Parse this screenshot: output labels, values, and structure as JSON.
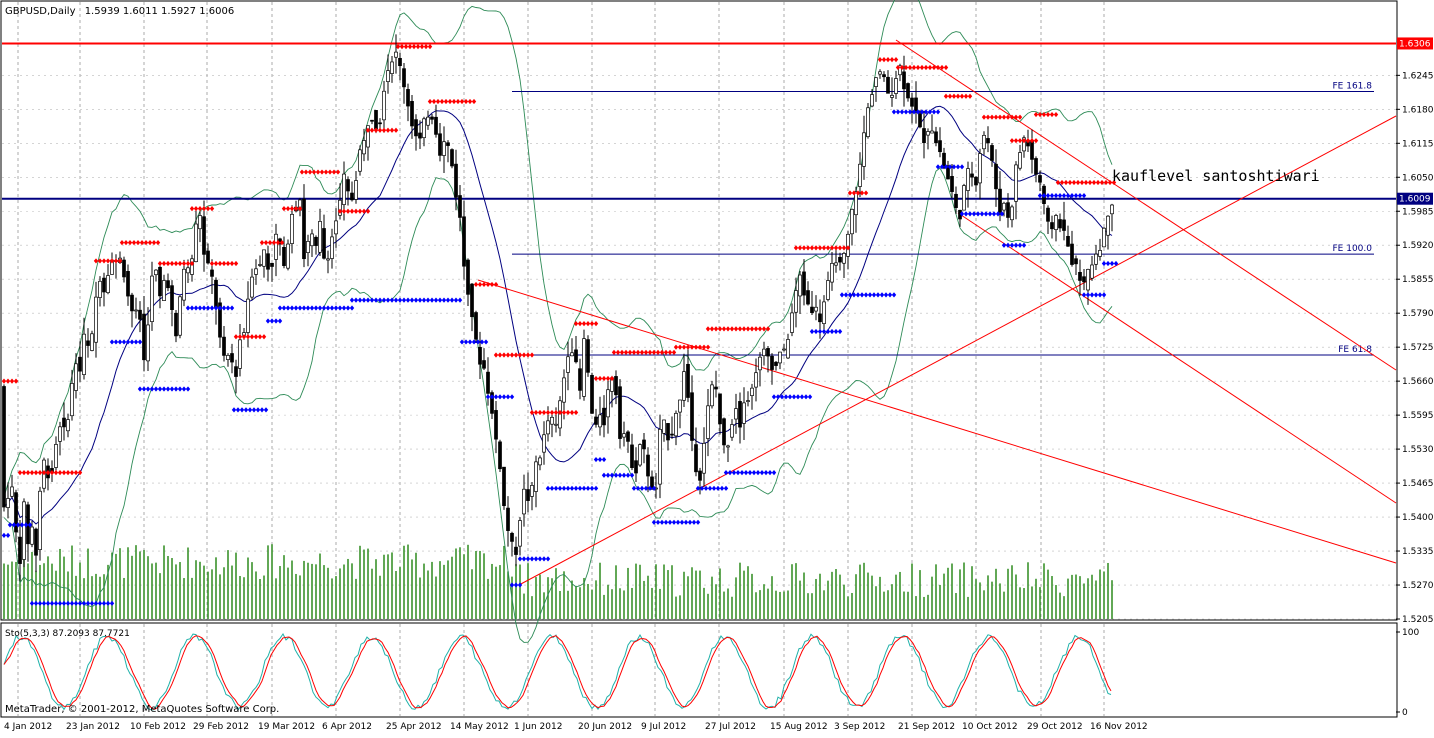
{
  "chart_data": [
    {
      "type": "candlestick",
      "symbol": "GBPUSD,Daily",
      "ohlc_label": "1.5939 1.6011 1.5927 1.6006",
      "watermark": "MetaTrader, © 2001-2012, MetaQuotes Software Corp.",
      "annotation": "kauflevel santoshtiwari",
      "ylim": [
        1.5205,
        1.637
      ],
      "y_ticks": [
        "1.6245",
        "1.6180",
        "1.6115",
        "1.6050",
        "1.5985",
        "1.5920",
        "1.5855",
        "1.5790",
        "1.5725",
        "1.5660",
        "1.5595",
        "1.5530",
        "1.5465",
        "1.5400",
        "1.5335",
        "1.5270",
        "1.5205"
      ],
      "x_ticks": [
        "4 Jan 2012",
        "23 Jan 2012",
        "10 Feb 2012",
        "29 Feb 2012",
        "19 Mar 2012",
        "6 Apr 2012",
        "25 Apr 2012",
        "14 May 2012",
        "1 Jun 2012",
        "20 Jun 2012",
        "9 Jul 2012",
        "27 Jul 2012",
        "15 Aug 2012",
        "3 Sep 2012",
        "21 Sep 2012",
        "10 Oct 2012",
        "29 Oct 2012",
        "16 Nov 2012"
      ],
      "horizontal_levels": [
        {
          "label": "1.6306",
          "value": 1.6306,
          "color": "#ff0000"
        },
        {
          "label": "1.6009",
          "value": 1.6009,
          "color": "#000080"
        }
      ],
      "fibonacci_levels": [
        {
          "label": "FE 161.8",
          "value": 1.6214
        },
        {
          "label": "FE 100.0",
          "value": 1.5903
        },
        {
          "label": "FE 61.8",
          "value": 1.571
        }
      ],
      "price_path": [
        [
          0,
          1.565
        ],
        [
          5,
          1.536
        ],
        [
          10,
          1.55
        ],
        [
          15,
          1.538
        ],
        [
          20,
          1.532
        ],
        [
          24,
          1.542
        ],
        [
          27,
          1.538
        ],
        [
          30,
          1.53
        ],
        [
          33,
          1.542
        ],
        [
          37,
          1.53
        ],
        [
          40,
          1.545
        ],
        [
          45,
          1.552
        ],
        [
          50,
          1.546
        ],
        [
          55,
          1.553
        ],
        [
          60,
          1.558
        ],
        [
          65,
          1.556
        ],
        [
          70,
          1.562
        ],
        [
          75,
          1.57
        ],
        [
          80,
          1.568
        ],
        [
          85,
          1.576
        ],
        [
          90,
          1.57
        ],
        [
          95,
          1.581
        ],
        [
          100,
          1.586
        ],
        [
          105,
          1.583
        ],
        [
          110,
          1.59
        ],
        [
          115,
          1.588
        ],
        [
          120,
          1.59
        ],
        [
          125,
          1.586
        ],
        [
          130,
          1.58
        ],
        [
          135,
          1.579
        ],
        [
          140,
          1.578
        ],
        [
          145,
          1.568
        ],
        [
          150,
          1.584
        ],
        [
          155,
          1.588
        ],
        [
          160,
          1.582
        ],
        [
          165,
          1.586
        ],
        [
          170,
          1.584
        ],
        [
          175,
          1.572
        ],
        [
          180,
          1.582
        ],
        [
          185,
          1.589
        ],
        [
          190,
          1.586
        ],
        [
          195,
          1.595
        ],
        [
          200,
          1.598
        ],
        [
          205,
          1.588
        ],
        [
          210,
          1.588
        ],
        [
          215,
          1.582
        ],
        [
          220,
          1.574
        ],
        [
          225,
          1.569
        ],
        [
          230,
          1.572
        ],
        [
          235,
          1.566
        ],
        [
          240,
          1.574
        ],
        [
          245,
          1.576
        ],
        [
          250,
          1.586
        ],
        [
          255,
          1.588
        ],
        [
          260,
          1.588
        ],
        [
          265,
          1.592
        ],
        [
          270,
          1.585
        ],
        [
          275,
          1.594
        ],
        [
          280,
          1.592
        ],
        [
          285,
          1.586
        ],
        [
          290,
          1.598
        ],
        [
          295,
          1.599
        ],
        [
          300,
          1.601
        ],
        [
          305,
          1.587
        ],
        [
          310,
          1.596
        ],
        [
          315,
          1.59
        ],
        [
          320,
          1.596
        ],
        [
          325,
          1.588
        ],
        [
          330,
          1.592
        ],
        [
          335,
          1.596
        ],
        [
          340,
          1.6
        ],
        [
          345,
          1.606
        ],
        [
          350,
          1.599
        ],
        [
          355,
          1.604
        ],
        [
          360,
          1.61
        ],
        [
          365,
          1.612
        ],
        [
          370,
          1.618
        ],
        [
          375,
          1.615
        ],
        [
          380,
          1.616
        ],
        [
          385,
          1.624
        ],
        [
          390,
          1.627
        ],
        [
          395,
          1.629
        ],
        [
          400,
          1.626
        ],
        [
          405,
          1.622
        ],
        [
          410,
          1.617
        ],
        [
          415,
          1.613
        ],
        [
          420,
          1.612
        ],
        [
          425,
          1.616
        ],
        [
          430,
          1.618
        ],
        [
          435,
          1.615
        ],
        [
          440,
          1.61
        ],
        [
          445,
          1.612
        ],
        [
          450,
          1.61
        ],
        [
          455,
          1.603
        ],
        [
          460,
          1.597
        ],
        [
          465,
          1.586
        ],
        [
          470,
          1.582
        ],
        [
          475,
          1.574
        ],
        [
          480,
          1.57
        ],
        [
          485,
          1.568
        ],
        [
          490,
          1.562
        ],
        [
          495,
          1.556
        ],
        [
          500,
          1.55
        ],
        [
          505,
          1.54
        ],
        [
          510,
          1.536
        ],
        [
          515,
          1.532
        ],
        [
          520,
          1.54
        ],
        [
          525,
          1.546
        ],
        [
          530,
          1.542
        ],
        [
          535,
          1.55
        ],
        [
          540,
          1.552
        ],
        [
          545,
          1.556
        ],
        [
          550,
          1.56
        ],
        [
          555,
          1.556
        ],
        [
          560,
          1.562
        ],
        [
          565,
          1.568
        ],
        [
          570,
          1.574
        ],
        [
          575,
          1.57
        ],
        [
          580,
          1.564
        ],
        [
          585,
          1.576
        ],
        [
          590,
          1.562
        ],
        [
          595,
          1.556
        ],
        [
          600,
          1.56
        ],
        [
          605,
          1.558
        ],
        [
          610,
          1.568
        ],
        [
          615,
          1.566
        ],
        [
          620,
          1.556
        ],
        [
          625,
          1.556
        ],
        [
          630,
          1.552
        ],
        [
          635,
          1.548
        ],
        [
          640,
          1.554
        ],
        [
          645,
          1.552
        ],
        [
          650,
          1.546
        ],
        [
          655,
          1.543
        ],
        [
          660,
          1.556
        ],
        [
          665,
          1.558
        ],
        [
          670,
          1.554
        ],
        [
          675,
          1.56
        ],
        [
          680,
          1.562
        ],
        [
          685,
          1.57
        ],
        [
          690,
          1.558
        ],
        [
          695,
          1.55
        ],
        [
          700,
          1.548
        ],
        [
          705,
          1.556
        ],
        [
          710,
          1.564
        ],
        [
          715,
          1.566
        ],
        [
          720,
          1.558
        ],
        [
          725,
          1.552
        ],
        [
          730,
          1.556
        ],
        [
          735,
          1.562
        ],
        [
          740,
          1.558
        ],
        [
          745,
          1.564
        ],
        [
          750,
          1.562
        ],
        [
          755,
          1.568
        ],
        [
          760,
          1.57
        ],
        [
          765,
          1.572
        ],
        [
          770,
          1.57
        ],
        [
          775,
          1.568
        ],
        [
          780,
          1.572
        ],
        [
          785,
          1.571
        ],
        [
          790,
          1.577
        ],
        [
          795,
          1.582
        ],
        [
          800,
          1.586
        ],
        [
          805,
          1.582
        ],
        [
          810,
          1.58
        ],
        [
          815,
          1.58
        ],
        [
          820,
          1.578
        ],
        [
          825,
          1.582
        ],
        [
          830,
          1.586
        ],
        [
          835,
          1.59
        ],
        [
          840,
          1.588
        ],
        [
          845,
          1.59
        ],
        [
          850,
          1.596
        ],
        [
          855,
          1.602
        ],
        [
          860,
          1.607
        ],
        [
          865,
          1.615
        ],
        [
          870,
          1.62
        ],
        [
          875,
          1.624
        ],
        [
          880,
          1.625
        ],
        [
          885,
          1.623
        ],
        [
          890,
          1.62
        ],
        [
          895,
          1.624
        ],
        [
          900,
          1.626
        ],
        [
          905,
          1.622
        ],
        [
          910,
          1.62
        ],
        [
          915,
          1.618
        ],
        [
          920,
          1.614
        ],
        [
          925,
          1.612
        ],
        [
          930,
          1.616
        ],
        [
          935,
          1.612
        ],
        [
          940,
          1.61
        ],
        [
          945,
          1.606
        ],
        [
          950,
          1.604
        ],
        [
          955,
          1.599
        ],
        [
          960,
          1.598
        ],
        [
          965,
          1.604
        ],
        [
          970,
          1.607
        ],
        [
          975,
          1.603
        ],
        [
          980,
          1.61
        ],
        [
          985,
          1.614
        ],
        [
          990,
          1.61
        ],
        [
          995,
          1.604
        ],
        [
          1000,
          1.599
        ],
        [
          1005,
          1.6
        ],
        [
          1010,
          1.596
        ],
        [
          1015,
          1.606
        ],
        [
          1020,
          1.61
        ],
        [
          1025,
          1.613
        ],
        [
          1030,
          1.61
        ],
        [
          1035,
          1.606
        ],
        [
          1040,
          1.604
        ],
        [
          1045,
          1.598
        ],
        [
          1050,
          1.594
        ],
        [
          1055,
          1.598
        ],
        [
          1060,
          1.596
        ],
        [
          1065,
          1.594
        ],
        [
          1070,
          1.59
        ],
        [
          1075,
          1.588
        ],
        [
          1080,
          1.586
        ],
        [
          1085,
          1.584
        ],
        [
          1090,
          1.588
        ],
        [
          1095,
          1.59
        ],
        [
          1100,
          1.592
        ],
        [
          1105,
          1.595
        ],
        [
          1110,
          1.6006
        ]
      ]
    },
    {
      "type": "line",
      "title": "Sto(5,3,3) 87.2093 87.7721",
      "ylim": [
        0,
        100
      ],
      "y_ticks": [
        "100",
        "0"
      ]
    }
  ],
  "colors": {
    "background": "#ffffff",
    "candle": "#000000",
    "volume": "#2e8b1e",
    "bands": "#2e8b57",
    "ma": "#000080",
    "resistance_dots": "#ff0000",
    "support_dots": "#0000ff",
    "trendline": "#ff0000",
    "stoch_main": "#20b2aa",
    "stoch_signal": "#ff0000"
  }
}
